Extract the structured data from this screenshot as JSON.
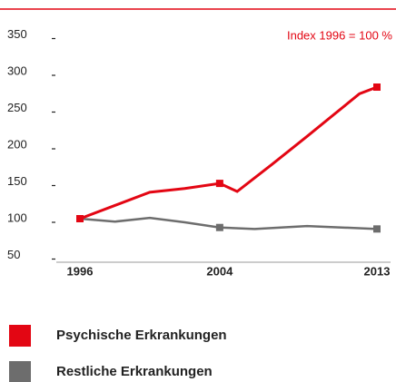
{
  "chart_data": {
    "type": "line",
    "annotation": "Index 1996 = 100 %",
    "series": [
      {
        "name": "Psychische Erkrankungen",
        "color": "#e30613",
        "x": [
          1996,
          1998,
          2000,
          2002,
          2004,
          2005,
          2007,
          2009,
          2012,
          2013
        ],
        "values": [
          100,
          118,
          136,
          141,
          148,
          137,
          174,
          212,
          270,
          279
        ],
        "markers_at": [
          1996,
          2004,
          2013
        ]
      },
      {
        "name": "Restliche Erkrankungen",
        "color": "#6d6d6d",
        "x": [
          1996,
          1998,
          2000,
          2002,
          2004,
          2006,
          2009,
          2013
        ],
        "values": [
          100,
          96,
          101,
          95,
          88,
          86,
          90,
          86
        ],
        "markers_at": [
          1996,
          2004,
          2013
        ]
      }
    ],
    "xlim": [
      1996,
      2013
    ],
    "xticks": [
      1996,
      2004,
      2013
    ],
    "ylim": [
      50,
      350
    ],
    "yticks": [
      50,
      100,
      150,
      200,
      250,
      300,
      350
    ]
  }
}
